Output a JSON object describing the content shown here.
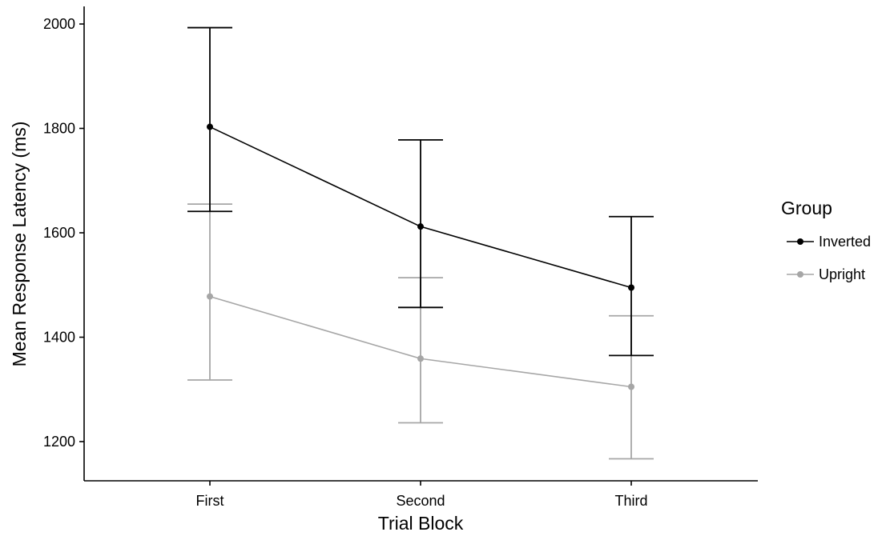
{
  "chart_data": {
    "type": "line",
    "xlabel": "Trial Block",
    "ylabel": "Mean Response Latency (ms)",
    "categories": [
      "First",
      "Second",
      "Third"
    ],
    "y_ticks": [
      "1200",
      "1400",
      "1600",
      "1800",
      "2000"
    ],
    "ylim": [
      1130,
      2030
    ],
    "grid": false,
    "legend": {
      "title": "Group",
      "position": "right"
    },
    "series": [
      {
        "name": "Inverted",
        "color": "#000000",
        "values": [
          1803,
          1612,
          1495
        ],
        "error_low": [
          1641,
          1457,
          1365
        ],
        "error_high": [
          1993,
          1778,
          1631
        ]
      },
      {
        "name": "Upright",
        "color": "#a6a6a6",
        "values": [
          1478,
          1359,
          1305
        ],
        "error_low": [
          1318,
          1236,
          1167
        ],
        "error_high": [
          1655,
          1514,
          1441
        ]
      }
    ]
  }
}
